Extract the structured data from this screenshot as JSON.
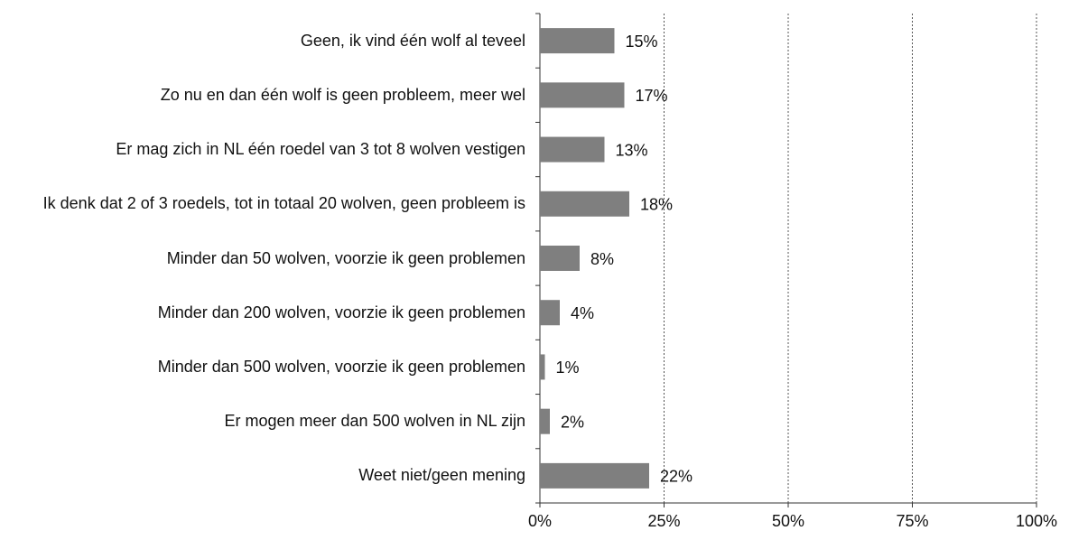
{
  "chart_data": {
    "type": "bar",
    "orientation": "horizontal",
    "categories": [
      "Geen, ik vind één wolf al teveel",
      "Zo nu en dan één wolf is geen probleem, meer wel",
      "Er mag zich in NL één roedel van 3 tot 8 wolven vestigen",
      "Ik denk dat 2 of 3 roedels, tot in totaal 20 wolven, geen probleem is",
      "Minder dan 50 wolven, voorzie ik geen problemen",
      "Minder dan 200 wolven, voorzie ik geen problemen",
      "Minder dan 500 wolven, voorzie ik geen problemen",
      "Er mogen meer dan 500 wolven in NL zijn",
      "Weet niet/geen mening"
    ],
    "values": [
      15,
      17,
      13,
      18,
      8,
      4,
      1,
      2,
      22
    ],
    "value_labels": [
      "15%",
      "17%",
      "13%",
      "18%",
      "8%",
      "4%",
      "1%",
      "2%",
      "22%"
    ],
    "color": "#7f7f7f",
    "xlim": [
      0,
      100
    ],
    "xticks": [
      {
        "value": 0,
        "label": "0%"
      },
      {
        "value": 25,
        "label": "25%"
      },
      {
        "value": 50,
        "label": "50%"
      },
      {
        "value": 75,
        "label": "75%"
      },
      {
        "value": 100,
        "label": "100%"
      }
    ],
    "grid": true
  }
}
